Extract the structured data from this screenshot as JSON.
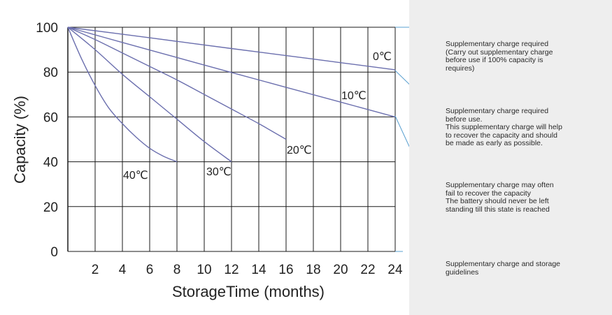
{
  "chart_data": {
    "type": "line",
    "xlabel": "StorageTime (months)",
    "ylabel": "Capacity  (%)",
    "xlim": [
      0,
      24
    ],
    "ylim": [
      0,
      100
    ],
    "x_ticks": [
      2,
      4,
      6,
      8,
      10,
      12,
      14,
      16,
      18,
      20,
      22,
      24
    ],
    "y_ticks": [
      0,
      20,
      40,
      60,
      80,
      100
    ],
    "grid": true,
    "line_color": "#6b6fae",
    "series": [
      {
        "name": "0℃",
        "points": [
          [
            0,
            100
          ],
          [
            6,
            95.3
          ],
          [
            12,
            90.5
          ],
          [
            18,
            85.8
          ],
          [
            24,
            81
          ]
        ]
      },
      {
        "name": "10℃",
        "points": [
          [
            0,
            100
          ],
          [
            4,
            93.2
          ],
          [
            8,
            86.5
          ],
          [
            12,
            79.8
          ],
          [
            16,
            73.2
          ],
          [
            20,
            66.6
          ],
          [
            24,
            60
          ]
        ]
      },
      {
        "name": "20℃",
        "points": [
          [
            0,
            100
          ],
          [
            2,
            94.5
          ],
          [
            4,
            88.5
          ],
          [
            6,
            82.5
          ],
          [
            8,
            76.5
          ],
          [
            10,
            70
          ],
          [
            12,
            63.5
          ],
          [
            14,
            57
          ],
          [
            16,
            50
          ]
        ]
      },
      {
        "name": "30℃",
        "points": [
          [
            0,
            100
          ],
          [
            2,
            90
          ],
          [
            4,
            79
          ],
          [
            6,
            69
          ],
          [
            8,
            59
          ],
          [
            10,
            49
          ],
          [
            12,
            40
          ]
        ]
      },
      {
        "name": "40℃",
        "points": [
          [
            0,
            100
          ],
          [
            1,
            86
          ],
          [
            2,
            74
          ],
          [
            3,
            64
          ],
          [
            4,
            57
          ],
          [
            5,
            51
          ],
          [
            6,
            46
          ],
          [
            7,
            42.5
          ],
          [
            8,
            40
          ]
        ]
      }
    ]
  },
  "panel": {
    "background": "#eeeeee",
    "connector_color": "#5aa0d0",
    "notes": [
      "Supplementary charge required\n(Carry out supplementary charge\nbefore use if 100% capacity is\nrequires)",
      "Supplementary charge required\nbefore use.\nThis supplementary charge will help\nto recover the capacity and should\nbe made  as early as possible.",
      "Supplementary charge may often\nfail to recover the capacity\nThe battery should never be left\nstanding till this state is reached",
      "Supplementary charge and storage\nguidelines"
    ]
  }
}
